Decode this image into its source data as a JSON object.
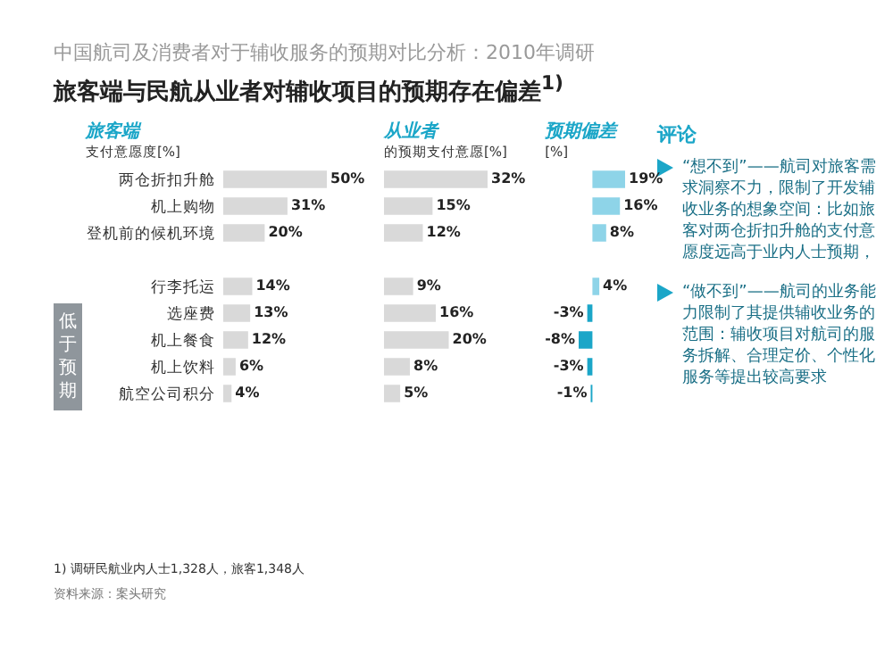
{
  "chart_data": [
    {
      "type": "other",
      "title": "中国航司及消费者对于辅收服务的预期对比分析：2010年调研",
      "subtitle": "旅客端与民航从业者对辅收项目的预期存在偏差$^{1)}$",
      "annotations": [
        "低于预期",
        "1) 调研民航业内人士1,328人，旅客1,348人",
        "资料来源：案头研究",
        "评论",
        "“想不到”——航司对旅客需求洞察不力，限制了开发辅收业务的想象空间：比如旅客对两仓折扣升舱的支付意愿度远高于业内人士预期，",
        "“做不到”——航司的业务能力限制了其提供辅收业务的范围：辅收项目对航司的服务拆解、合理定价、个性化服务等提出较高要求"
      ]
    },
    {
      "type": "bar",
      "orientation": "horizontal",
      "title": "旅客端",
      "subtitle": "支付意愿度[%]",
      "tick_labels": "y",
      "categories": [
        "两仓折扣升舱",
        "机上购物",
        "登机前的候机环境",
        null,
        "行李托运",
        "选座费",
        "机上餐食",
        "机上饮料",
        "航空公司积分"
      ],
      "values": [
        50,
        31,
        20,
        null,
        14,
        13,
        12,
        6,
        4
      ],
      "color": "#d9d9d9",
      "value_labels": [
        "50%",
        "31%",
        "20%",
        null,
        "14%",
        "13%",
        "12%",
        "6%",
        "4%"
      ]
    },
    {
      "type": "bar",
      "orientation": "horizontal",
      "title": "从业者",
      "subtitle": "的预期支付意愿[%]",
      "tick_labels": false,
      "values": [
        32,
        15,
        12,
        null,
        9,
        16,
        20,
        8,
        5
      ],
      "color": "#d9d9d9",
      "value_labels": [
        "32%",
        "15%",
        "12%",
        null,
        "9%",
        "16%",
        "20%",
        "8%",
        "5%"
      ]
    },
    {
      "type": "bar",
      "orientation": "horizontal",
      "title": "预期偏差",
      "subtitle": "[%]",
      "tick_labels": false,
      "values": [
        19,
        16,
        8,
        null,
        4,
        -3,
        -8,
        -3,
        -1
      ],
      "colors": [
        "#8ed4e8",
        "#8ed4e8",
        "#8ed4e8",
        null,
        "#8ed4e8",
        "#1ba6c8",
        "#1ba6c8",
        "#1ba6c8",
        "#1ba6c8"
      ],
      "value_labels": [
        "19%",
        "16%",
        "8%",
        null,
        "4%",
        "-3%",
        "-8%",
        "-3%",
        "-1%"
      ]
    }
  ]
}
